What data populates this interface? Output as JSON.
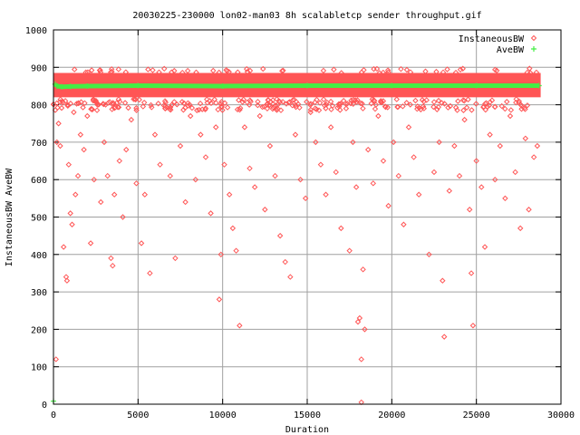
{
  "chart_data": {
    "type": "scatter",
    "title": "20030225-230000 lon02-man03 8h scalabletcp sender throughput.gif",
    "xlabel": "Duration",
    "ylabel": "InstaneousBW AveBW",
    "xlim": [
      0,
      30000
    ],
    "ylim": [
      0,
      1000
    ],
    "xticks": [
      0,
      5000,
      10000,
      15000,
      20000,
      25000,
      30000
    ],
    "yticks": [
      0,
      100,
      200,
      300,
      400,
      500,
      600,
      700,
      800,
      900,
      1000
    ],
    "grid": true,
    "legend_position": "top-right",
    "series": [
      {
        "name": "InstaneousBW",
        "marker": "diamond",
        "color": "#ff5555",
        "band": {
          "x_range": [
            0,
            28800
          ],
          "y_range": [
            820,
            885
          ]
        },
        "points": [
          [
            150,
            120
          ],
          [
            200,
            700
          ],
          [
            300,
            750
          ],
          [
            400,
            690
          ],
          [
            600,
            420
          ],
          [
            750,
            340
          ],
          [
            800,
            330
          ],
          [
            900,
            640
          ],
          [
            1000,
            510
          ],
          [
            1100,
            480
          ],
          [
            1200,
            780
          ],
          [
            1300,
            560
          ],
          [
            1450,
            610
          ],
          [
            1600,
            720
          ],
          [
            1800,
            680
          ],
          [
            2000,
            770
          ],
          [
            2200,
            430
          ],
          [
            2400,
            600
          ],
          [
            2600,
            800
          ],
          [
            2800,
            540
          ],
          [
            3000,
            700
          ],
          [
            3200,
            610
          ],
          [
            3400,
            390
          ],
          [
            3500,
            370
          ],
          [
            3600,
            560
          ],
          [
            3900,
            650
          ],
          [
            4100,
            500
          ],
          [
            4300,
            680
          ],
          [
            4600,
            760
          ],
          [
            4900,
            590
          ],
          [
            5200,
            430
          ],
          [
            5400,
            560
          ],
          [
            5700,
            350
          ],
          [
            6000,
            720
          ],
          [
            6300,
            640
          ],
          [
            6600,
            790
          ],
          [
            6900,
            610
          ],
          [
            7200,
            390
          ],
          [
            7500,
            690
          ],
          [
            7800,
            540
          ],
          [
            8100,
            770
          ],
          [
            8400,
            600
          ],
          [
            8700,
            720
          ],
          [
            9000,
            660
          ],
          [
            9300,
            510
          ],
          [
            9600,
            740
          ],
          [
            9800,
            280
          ],
          [
            9900,
            400
          ],
          [
            10100,
            640
          ],
          [
            10400,
            560
          ],
          [
            10600,
            470
          ],
          [
            10800,
            410
          ],
          [
            11000,
            210
          ],
          [
            11300,
            740
          ],
          [
            11600,
            630
          ],
          [
            11900,
            580
          ],
          [
            12200,
            770
          ],
          [
            12500,
            520
          ],
          [
            12800,
            690
          ],
          [
            13100,
            610
          ],
          [
            13400,
            450
          ],
          [
            13700,
            380
          ],
          [
            14000,
            340
          ],
          [
            14300,
            720
          ],
          [
            14600,
            600
          ],
          [
            14900,
            550
          ],
          [
            15200,
            780
          ],
          [
            15500,
            700
          ],
          [
            15800,
            640
          ],
          [
            16100,
            560
          ],
          [
            16400,
            740
          ],
          [
            16700,
            620
          ],
          [
            17000,
            470
          ],
          [
            17300,
            790
          ],
          [
            17500,
            410
          ],
          [
            17700,
            700
          ],
          [
            17900,
            580
          ],
          [
            18000,
            220
          ],
          [
            18100,
            230
          ],
          [
            18200,
            120
          ],
          [
            18300,
            360
          ],
          [
            18400,
            200
          ],
          [
            18600,
            680
          ],
          [
            18900,
            590
          ],
          [
            19200,
            770
          ],
          [
            19500,
            650
          ],
          [
            19800,
            530
          ],
          [
            20100,
            700
          ],
          [
            20400,
            610
          ],
          [
            20700,
            480
          ],
          [
            21000,
            740
          ],
          [
            21300,
            660
          ],
          [
            21600,
            560
          ],
          [
            21900,
            790
          ],
          [
            22200,
            400
          ],
          [
            22500,
            620
          ],
          [
            22800,
            700
          ],
          [
            23000,
            330
          ],
          [
            23100,
            180
          ],
          [
            23400,
            570
          ],
          [
            23700,
            690
          ],
          [
            24000,
            610
          ],
          [
            24300,
            760
          ],
          [
            24600,
            520
          ],
          [
            24700,
            350
          ],
          [
            24800,
            210
          ],
          [
            25000,
            650
          ],
          [
            25300,
            580
          ],
          [
            25500,
            420
          ],
          [
            25800,
            720
          ],
          [
            26100,
            600
          ],
          [
            26400,
            690
          ],
          [
            26700,
            550
          ],
          [
            27000,
            770
          ],
          [
            27300,
            620
          ],
          [
            27600,
            470
          ],
          [
            27900,
            710
          ],
          [
            28100,
            520
          ],
          [
            28400,
            660
          ],
          [
            28600,
            690
          ],
          [
            18200,
            5
          ]
        ]
      },
      {
        "name": "AveBW",
        "marker": "plus",
        "color": "#44ee44",
        "points": [
          [
            0,
            8
          ],
          [
            100,
            855
          ],
          [
            200,
            850
          ],
          [
            500,
            848
          ],
          [
            1000,
            849
          ],
          [
            2000,
            850
          ],
          [
            5000,
            851
          ],
          [
            10000,
            850
          ],
          [
            15000,
            851
          ],
          [
            20000,
            851
          ],
          [
            25000,
            851
          ],
          [
            28700,
            851
          ]
        ]
      }
    ]
  }
}
